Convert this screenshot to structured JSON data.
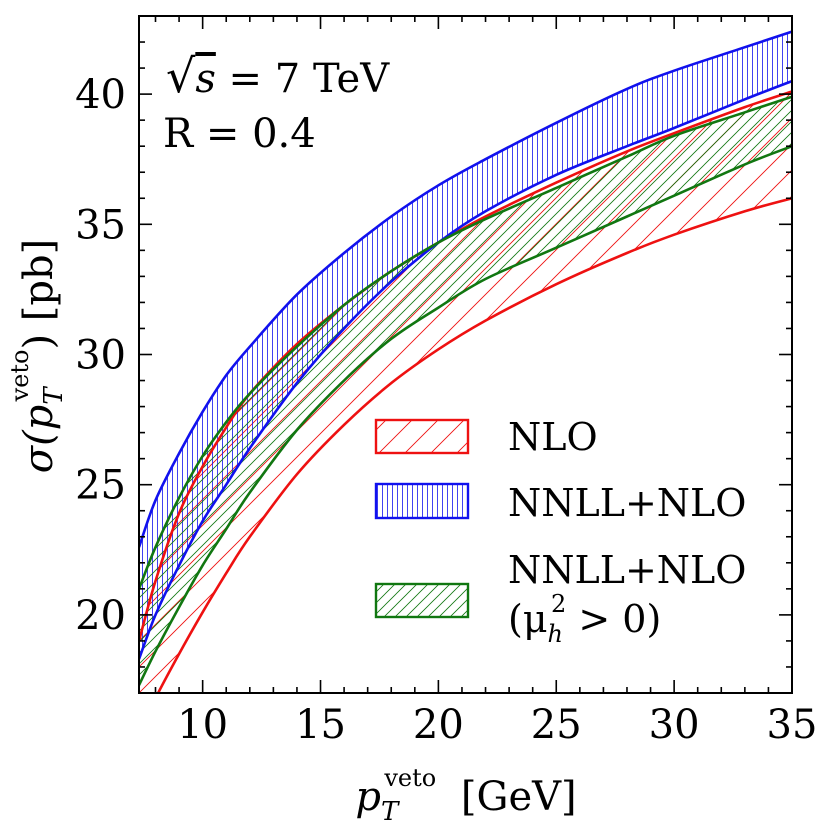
{
  "chart_data": {
    "type": "area",
    "x_label": "p_T^veto [GeV]",
    "x_label_main": "p",
    "x_label_sub": "T",
    "x_label_sup": "veto",
    "x_label_unit": "[GeV]",
    "y_label": "σ(p_T^veto) [pb]",
    "y_label_sigma": "σ(p",
    "y_label_sub": "T",
    "y_label_sup": "veto",
    "y_label_unit": ") [pb]",
    "xlim": [
      7.3,
      35
    ],
    "ylim": [
      17,
      43
    ],
    "x_ticks": [
      10,
      15,
      20,
      25,
      30,
      35
    ],
    "y_ticks": [
      20,
      25,
      30,
      35,
      40
    ],
    "x_tick_labels": [
      "10",
      "15",
      "20",
      "25",
      "30",
      "35"
    ],
    "y_tick_labels": [
      "20",
      "25",
      "30",
      "35",
      "40"
    ],
    "annotations": {
      "energy_root": "√",
      "energy_var": "s",
      "energy_rest": " = 7 TeV",
      "radius": "R = 0.4"
    },
    "legend_position": "lower-right",
    "series": [
      {
        "name": "NLO",
        "legend_label": "NLO",
        "color": "#ee1111",
        "hatch": "backslash",
        "x": [
          7.3,
          8,
          9,
          10,
          11,
          12,
          14,
          16,
          18,
          20,
          22,
          25,
          28,
          30,
          33,
          35
        ],
        "upper": [
          19.0,
          21.3,
          23.9,
          25.7,
          27.2,
          28.5,
          30.4,
          31.9,
          33.2,
          34.3,
          35.3,
          36.6,
          37.8,
          38.5,
          39.5,
          40.1
        ],
        "lower": [
          15.4,
          16.8,
          18.5,
          20.1,
          21.6,
          23.0,
          25.4,
          27.3,
          28.9,
          30.2,
          31.3,
          32.7,
          33.9,
          34.6,
          35.5,
          36.0
        ]
      },
      {
        "name": "NNLL+NLO",
        "legend_label": "NNLL+NLO",
        "color": "#1111ee",
        "hatch": "vertical",
        "x": [
          7.3,
          8,
          9,
          10,
          11,
          12,
          14,
          16,
          18,
          20,
          22,
          25,
          28,
          30,
          33,
          35
        ],
        "upper": [
          22.6,
          24.4,
          26.2,
          27.8,
          29.2,
          30.3,
          32.3,
          33.9,
          35.3,
          36.5,
          37.5,
          38.9,
          40.2,
          40.9,
          41.8,
          42.4
        ],
        "lower": [
          18.3,
          20.0,
          21.9,
          23.6,
          25.0,
          26.4,
          28.9,
          31.0,
          32.8,
          34.3,
          35.5,
          36.9,
          38.0,
          38.7,
          39.8,
          40.5
        ]
      },
      {
        "name": "NNLL+NLO (mu_h^2 > 0)",
        "legend_label": "NNLL+NLO",
        "legend_label_2": "(μ",
        "legend_label_2_sub": "h",
        "legend_label_2_sup": "2",
        "legend_label_2_rest": " > 0)",
        "color": "#117711",
        "hatch": "slash",
        "x": [
          7.3,
          8,
          9,
          10,
          11,
          12,
          14,
          16,
          18,
          20,
          22,
          25,
          28,
          30,
          33,
          35
        ],
        "upper": [
          21.0,
          22.6,
          24.5,
          26.1,
          27.4,
          28.5,
          30.3,
          31.9,
          33.2,
          34.3,
          35.2,
          36.4,
          37.6,
          38.4,
          39.3,
          39.9
        ],
        "lower": [
          17.3,
          18.6,
          20.3,
          21.9,
          23.3,
          24.7,
          27.1,
          29.0,
          30.6,
          31.8,
          32.9,
          34.1,
          35.3,
          36.1,
          37.3,
          38.0
        ]
      }
    ]
  }
}
